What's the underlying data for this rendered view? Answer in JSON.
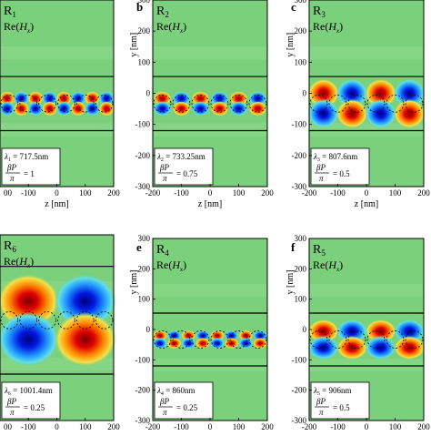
{
  "figure": {
    "panels": [
      {
        "letter": "",
        "region": "R",
        "region_sub": "1",
        "field": "Re(",
        "field_var": "H",
        "field_sub": "x",
        "field_close": ")",
        "wl_sym": "λ",
        "wl_sub": "1",
        "wl_value": " = 717.5nm",
        "beta": "βP",
        "pi": "π",
        "ratio": "= 1",
        "lobes": 8,
        "amp": "small"
      },
      {
        "letter": "b",
        "region": "R",
        "region_sub": "2",
        "field": "Re(",
        "field_var": "H",
        "field_sub": "x",
        "field_close": ")",
        "wl_sym": "λ",
        "wl_sub": "2",
        "wl_value": " = 733.25nm",
        "beta": "βP",
        "pi": "π",
        "ratio": "= 0.75",
        "lobes": 6,
        "amp": "small"
      },
      {
        "letter": "c",
        "region": "R",
        "region_sub": "3",
        "field": "Re(",
        "field_var": "H",
        "field_sub": "x",
        "field_close": ")",
        "wl_sym": "λ",
        "wl_sub": "3",
        "wl_value": " = 807.6nm",
        "beta": "βP",
        "pi": "π",
        "ratio": "= 0.5",
        "lobes": 4,
        "amp": "large"
      },
      {
        "letter": "",
        "region": "R",
        "region_sub": "6",
        "field": "Re(",
        "field_var": "H",
        "field_sub": "x",
        "field_close": ")",
        "wl_sym": "λ",
        "wl_sub": "6",
        "wl_value": " = 1001.4nm",
        "beta": "βP",
        "pi": "π",
        "ratio": "= 0.25",
        "lobes": 2,
        "amp": "xlarge"
      },
      {
        "letter": "e",
        "region": "R",
        "region_sub": "4",
        "field": "Re(",
        "field_var": "H",
        "field_sub": "x",
        "field_close": ")",
        "wl_sym": "λ",
        "wl_sub": "4",
        "wl_value": " = 860nm",
        "beta": "βP",
        "pi": "π",
        "ratio": "= 0.25",
        "lobes": 8,
        "amp": "tiny"
      },
      {
        "letter": "f",
        "region": "R",
        "region_sub": "5",
        "field": "Re(",
        "field_var": "H",
        "field_sub": "x",
        "field_close": ")",
        "wl_sym": "λ",
        "wl_sub": "5",
        "wl_value": " = 906nm",
        "beta": "βP",
        "pi": "π",
        "ratio": "= 0.5",
        "lobes": 4,
        "amp": "medium"
      }
    ],
    "y_axis_label": "y [nm]",
    "x_axis_label": "z [nm]",
    "y_ticks": [
      "300",
      "200",
      "100",
      "0",
      "-100",
      "-200",
      "-300"
    ],
    "x_ticks_full": [
      "-200",
      "-100",
      "0",
      "100",
      "200"
    ],
    "x_ticks_left_cut": [
      "00",
      "-100",
      "0",
      "100",
      "200"
    ]
  },
  "colors": {
    "background": "#7bd07b",
    "positive": "#e01010",
    "negative": "#1428e0"
  }
}
